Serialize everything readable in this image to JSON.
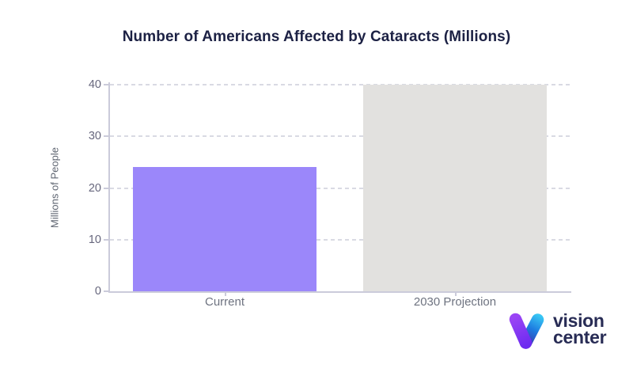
{
  "chart_data": {
    "type": "bar",
    "title": "Number of Americans Affected by Cataracts (Millions)",
    "categories": [
      "Current",
      "2030 Projection"
    ],
    "values": [
      24,
      40
    ],
    "xlabel": "",
    "ylabel": "Millions of People",
    "ylim": [
      0,
      40
    ],
    "yticks": [
      0,
      10,
      20,
      30,
      40
    ],
    "grid": "horizontal-dashed",
    "legend": "none",
    "bar_colors": [
      "#9b87fa",
      "#e2e1df"
    ]
  },
  "colors": {
    "title_text": "#1c2144",
    "axis_line": "#cbcbda",
    "gridline": "#d9dae3",
    "y_tick_label": "#67677d",
    "category_label": "#6e7380",
    "axis_title": "#5d6470",
    "logo_text": "#282c55",
    "logo_purple_top": "#9a45f5",
    "logo_purple_bottom": "#6c2af0",
    "logo_blue_top": "#38c6f4",
    "logo_blue_bottom": "#4527a0"
  },
  "logo": {
    "line1": "vision",
    "line2": "center",
    "icon": "v-checkmark-gradient-icon"
  }
}
